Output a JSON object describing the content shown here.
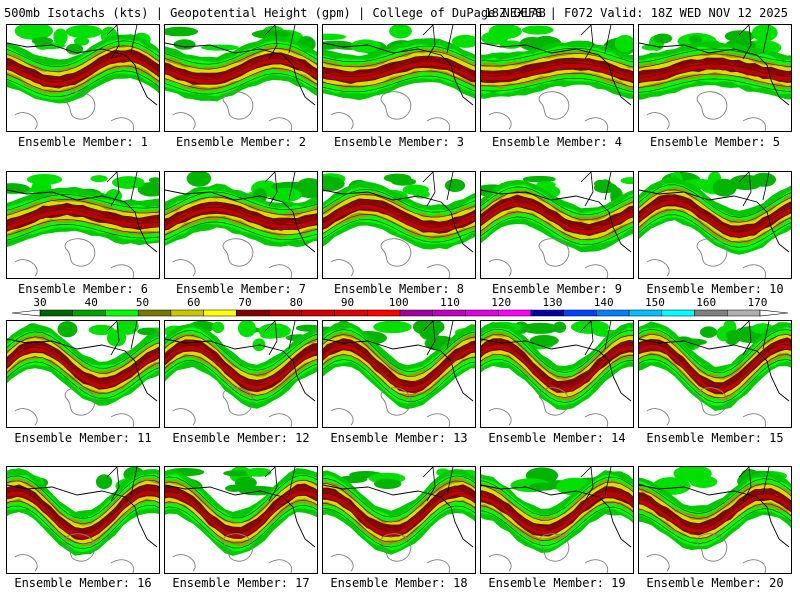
{
  "header": {
    "left": "500mb Isotachs (kts) | Geopotential Height (gpm) | College of DuPage NEXLAB",
    "right": "18Z GEFS | F072 Valid: 18Z WED NOV 12 2025"
  },
  "panels": [
    {
      "label": "Ensemble Member: 1"
    },
    {
      "label": "Ensemble Member: 2"
    },
    {
      "label": "Ensemble Member: 3"
    },
    {
      "label": "Ensemble Member: 4"
    },
    {
      "label": "Ensemble Member: 5"
    },
    {
      "label": "Ensemble Member: 6"
    },
    {
      "label": "Ensemble Member: 7"
    },
    {
      "label": "Ensemble Member: 8"
    },
    {
      "label": "Ensemble Member: 9"
    },
    {
      "label": "Ensemble Member: 10"
    },
    {
      "label": "Ensemble Member: 11"
    },
    {
      "label": "Ensemble Member: 12"
    },
    {
      "label": "Ensemble Member: 13"
    },
    {
      "label": "Ensemble Member: 14"
    },
    {
      "label": "Ensemble Member: 15"
    },
    {
      "label": "Ensemble Member: 16"
    },
    {
      "label": "Ensemble Member: 17"
    },
    {
      "label": "Ensemble Member: 18"
    },
    {
      "label": "Ensemble Member: 19"
    },
    {
      "label": "Ensemble Member: 20"
    }
  ],
  "colorbar": {
    "labels": [
      "30",
      "40",
      "50",
      "60",
      "70",
      "80",
      "90",
      "100",
      "110",
      "120",
      "130",
      "140",
      "150",
      "160",
      "170"
    ],
    "colors": [
      "#006400",
      "#00a000",
      "#00ff00",
      "#787800",
      "#c8c800",
      "#ffff00",
      "#800000",
      "#b00000",
      "#d00000",
      "#e00000",
      "#ff0000",
      "#a000a0",
      "#c000c0",
      "#e000e0",
      "#ff00ff",
      "#0000a0",
      "#0040ff",
      "#0080ff",
      "#00c0ff",
      "#00ffff",
      "#808080",
      "#b0b0b0"
    ]
  }
}
